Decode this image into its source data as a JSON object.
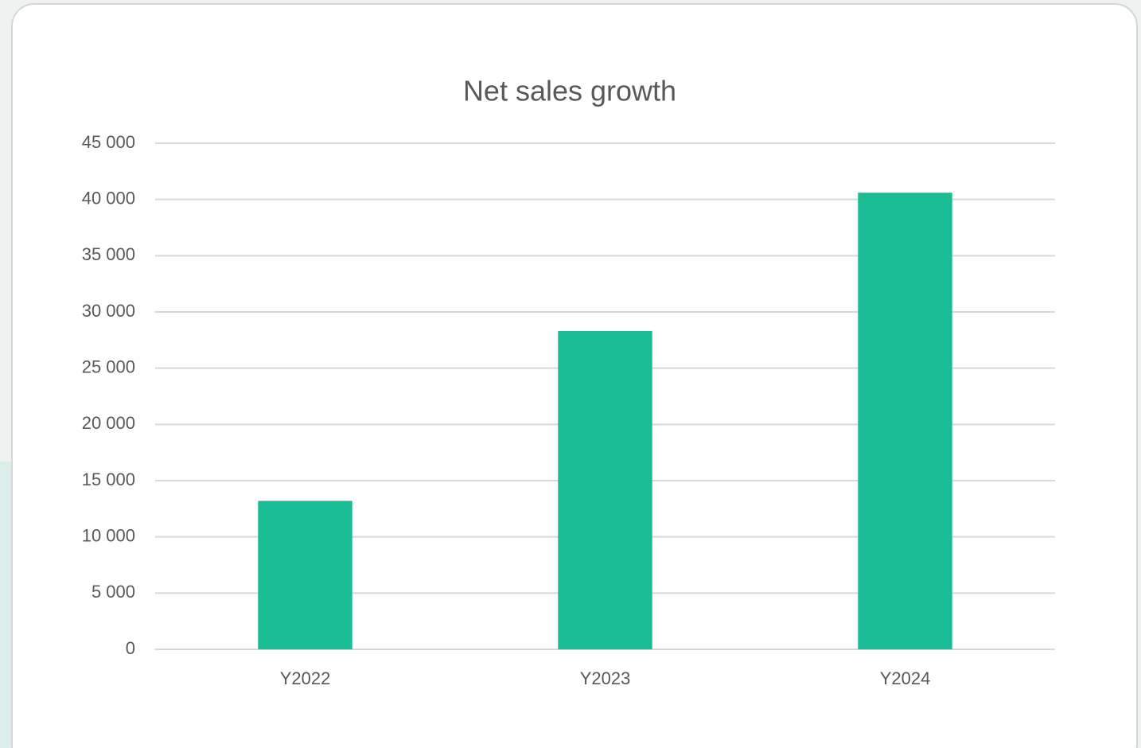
{
  "chart_data": {
    "type": "bar",
    "title": "Net sales growth",
    "categories": [
      "Y2022",
      "Y2023",
      "Y2024"
    ],
    "values": [
      13200,
      28300,
      40600
    ],
    "color": "#1abc94",
    "ylim": [
      0,
      45000
    ],
    "yticks": [
      0,
      {
        "value": 5000,
        "label": "5 000"
      },
      {
        "value": 10000,
        "label": "10 000"
      },
      {
        "value": 15000,
        "label": "15 000"
      },
      {
        "value": 20000,
        "label": "20 000"
      },
      {
        "value": 25000,
        "label": "25 000"
      },
      {
        "value": 30000,
        "label": "30 000"
      },
      {
        "value": 35000,
        "label": "35 000"
      },
      {
        "value": 40000,
        "label": "40 000"
      },
      {
        "value": 45000,
        "label": "45 000"
      }
    ],
    "grid": true
  }
}
